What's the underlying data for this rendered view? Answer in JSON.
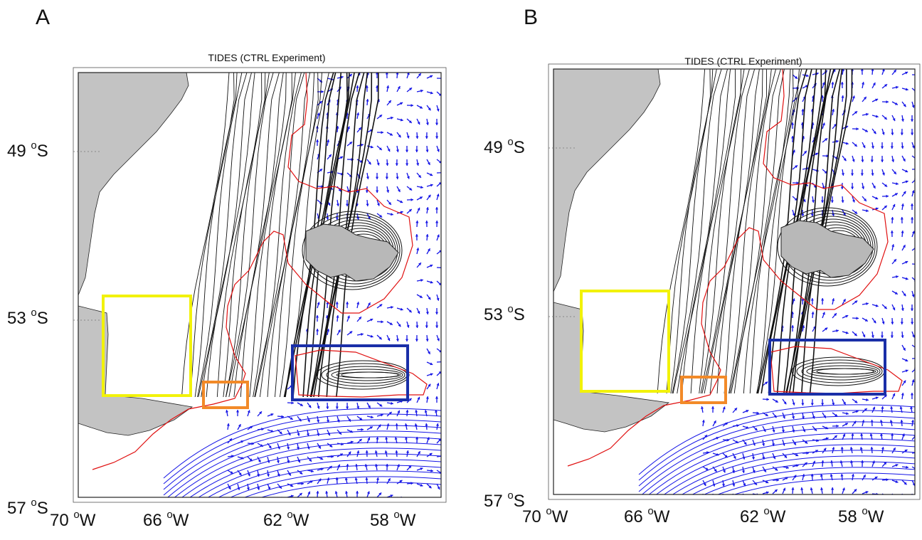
{
  "panels": [
    {
      "letter": "A",
      "title": "TIDES (CTRL Experiment)",
      "lat_labels": [
        {
          "deg": "49",
          "sym": "o",
          "hem": "S"
        },
        {
          "deg": "53",
          "sym": "o",
          "hem": "S"
        },
        {
          "deg": "57",
          "sym": "o",
          "hem": "S"
        }
      ],
      "lon_labels": [
        {
          "deg": "70",
          "sym": "o",
          "hem": "W"
        },
        {
          "deg": "66",
          "sym": "o",
          "hem": "W"
        },
        {
          "deg": "62",
          "sym": "o",
          "hem": "W"
        },
        {
          "deg": "58",
          "sym": "o",
          "hem": "W"
        }
      ]
    },
    {
      "letter": "B",
      "title": "TIDES (CTRL Experiment)",
      "lat_labels": [
        {
          "deg": "49",
          "sym": "o",
          "hem": "S"
        },
        {
          "deg": "53",
          "sym": "o",
          "hem": "S"
        },
        {
          "deg": "57",
          "sym": "o",
          "hem": "S"
        }
      ],
      "lon_labels": [
        {
          "deg": "70",
          "sym": "o",
          "hem": "W"
        },
        {
          "deg": "66",
          "sym": "o",
          "hem": "W"
        },
        {
          "deg": "62",
          "sym": "o",
          "hem": "W"
        },
        {
          "deg": "58",
          "sym": "o",
          "hem": "W"
        }
      ]
    }
  ],
  "colors": {
    "land": "#c3c3c3",
    "streamline": "#111111",
    "vector": "#1414e6",
    "isobath": "#e01010",
    "box_yellow": "#f2f20a",
    "box_orange": "#f28a28",
    "box_blue": "#1a2fa8"
  }
}
